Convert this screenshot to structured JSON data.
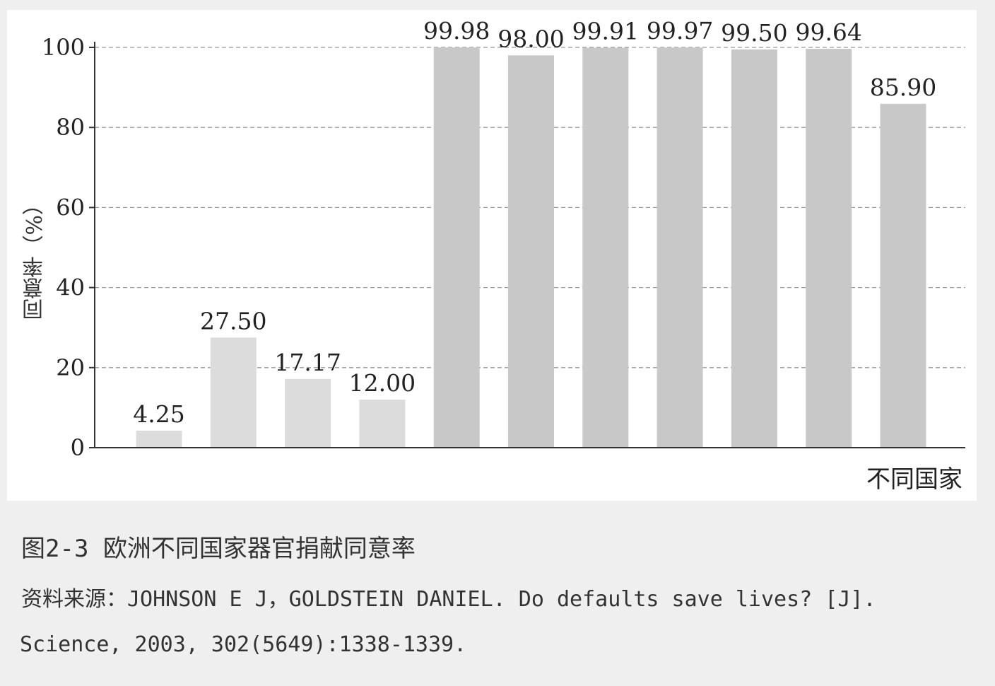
{
  "chart_data": {
    "type": "bar",
    "categories": [
      "",
      "",
      "",
      "",
      "",
      "",
      "",
      "",
      "",
      "",
      ""
    ],
    "values": [
      4.25,
      27.5,
      17.17,
      12.0,
      99.98,
      98.0,
      99.91,
      99.97,
      99.5,
      99.64,
      85.9
    ],
    "labels": [
      "4.25",
      "27.50",
      "17.17",
      "12.00",
      "99.98",
      "98.00",
      "99.91",
      "99.97",
      "99.50",
      "99.64",
      "85.90"
    ],
    "ylabel": "同意率（%）",
    "xlabel": "不同国家",
    "ylim": [
      0,
      100
    ],
    "yticks": [
      0,
      20,
      40,
      60,
      80,
      100
    ],
    "grid": true,
    "bar_colors": [
      "#dcdcdc",
      "#dcdcdc",
      "#dcdcdc",
      "#dcdcdc",
      "#c8c8c8",
      "#c8c8c8",
      "#c8c8c8",
      "#c8c8c8",
      "#c8c8c8",
      "#c8c8c8",
      "#c8c8c8"
    ]
  },
  "caption": {
    "title": "图2-3  欧洲不同国家器官捐献同意率",
    "source_line1": "资料来源：JOHNSON E J，GOLDSTEIN DANIEL. Do defaults save lives? [J].",
    "source_line2": "Science, 2003, 302(5649):1338-1339."
  }
}
